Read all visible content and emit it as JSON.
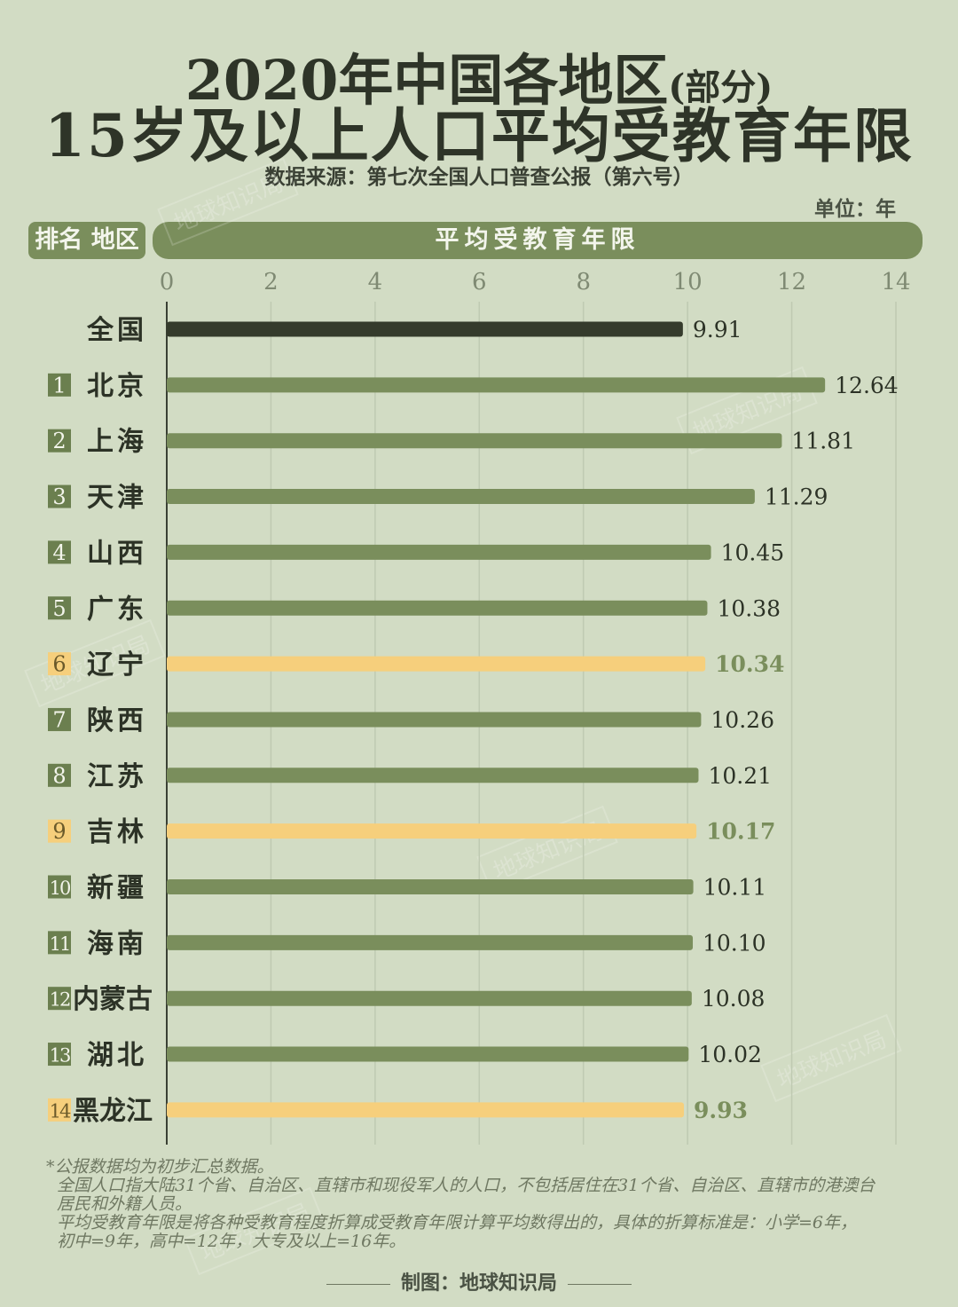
{
  "title_line1": "2020年中国各地区",
  "title_line1_paren": "(部分)",
  "title_line2": "15岁及以上人口平均受教育年限",
  "source": "数据来源：第七次全国人口普查公报（第六号）",
  "unit": "单位：年",
  "header_left": "排名 地区",
  "header_right": "平均受教育年限",
  "footnotes": [
    "*公报数据均为初步汇总数据。",
    "全国人口指大陆31个省、自治区、直辖市和现役军人的人口，不包括居住在31个省、自治区、直辖市的港澳台",
    "居民和外籍人员。",
    "平均受教育年限是将各种受教育程度折算成受教育年限计算平均数得出的，具体的折算标准是：小学=6年，",
    "初中=9年，高中=12年，大专及以上=16年。"
  ],
  "credit": "制图：地球知识局",
  "watermark": "地球知识局",
  "colors": {
    "national": "#353b2c",
    "default": "#7a8e5c",
    "highlight": "#f6cf7c",
    "rank_box": "#6b7f4f",
    "label": "#2c3226",
    "highlight_label": "#7a8e5c"
  },
  "chart_data": {
    "type": "bar",
    "orientation": "horizontal",
    "xlim": [
      0,
      14
    ],
    "xticks": [
      0,
      2,
      4,
      6,
      8,
      10,
      12,
      14
    ],
    "rows": [
      {
        "rank": "",
        "region": "全国",
        "value": 9.91,
        "label": "9.91",
        "style": "national"
      },
      {
        "rank": "1",
        "region": "北京",
        "value": 12.64,
        "label": "12.64",
        "style": "default"
      },
      {
        "rank": "2",
        "region": "上海",
        "value": 11.81,
        "label": "11.81",
        "style": "default"
      },
      {
        "rank": "3",
        "region": "天津",
        "value": 11.29,
        "label": "11.29",
        "style": "default"
      },
      {
        "rank": "4",
        "region": "山西",
        "value": 10.45,
        "label": "10.45",
        "style": "default"
      },
      {
        "rank": "5",
        "region": "广东",
        "value": 10.38,
        "label": "10.38",
        "style": "default"
      },
      {
        "rank": "6",
        "region": "辽宁",
        "value": 10.34,
        "label": "10.34",
        "style": "highlight"
      },
      {
        "rank": "7",
        "region": "陕西",
        "value": 10.26,
        "label": "10.26",
        "style": "default"
      },
      {
        "rank": "8",
        "region": "江苏",
        "value": 10.21,
        "label": "10.21",
        "style": "default"
      },
      {
        "rank": "9",
        "region": "吉林",
        "value": 10.17,
        "label": "10.17",
        "style": "highlight"
      },
      {
        "rank": "10",
        "region": "新疆",
        "value": 10.11,
        "label": "10.11",
        "style": "default"
      },
      {
        "rank": "11",
        "region": "海南",
        "value": 10.1,
        "label": "10.10",
        "style": "default"
      },
      {
        "rank": "12",
        "region": "内蒙古",
        "value": 10.08,
        "label": "10.08",
        "style": "default"
      },
      {
        "rank": "13",
        "region": "湖北",
        "value": 10.02,
        "label": "10.02",
        "style": "default"
      },
      {
        "rank": "14",
        "region": "黑龙江",
        "value": 9.93,
        "label": "9.93",
        "style": "highlight"
      }
    ]
  }
}
